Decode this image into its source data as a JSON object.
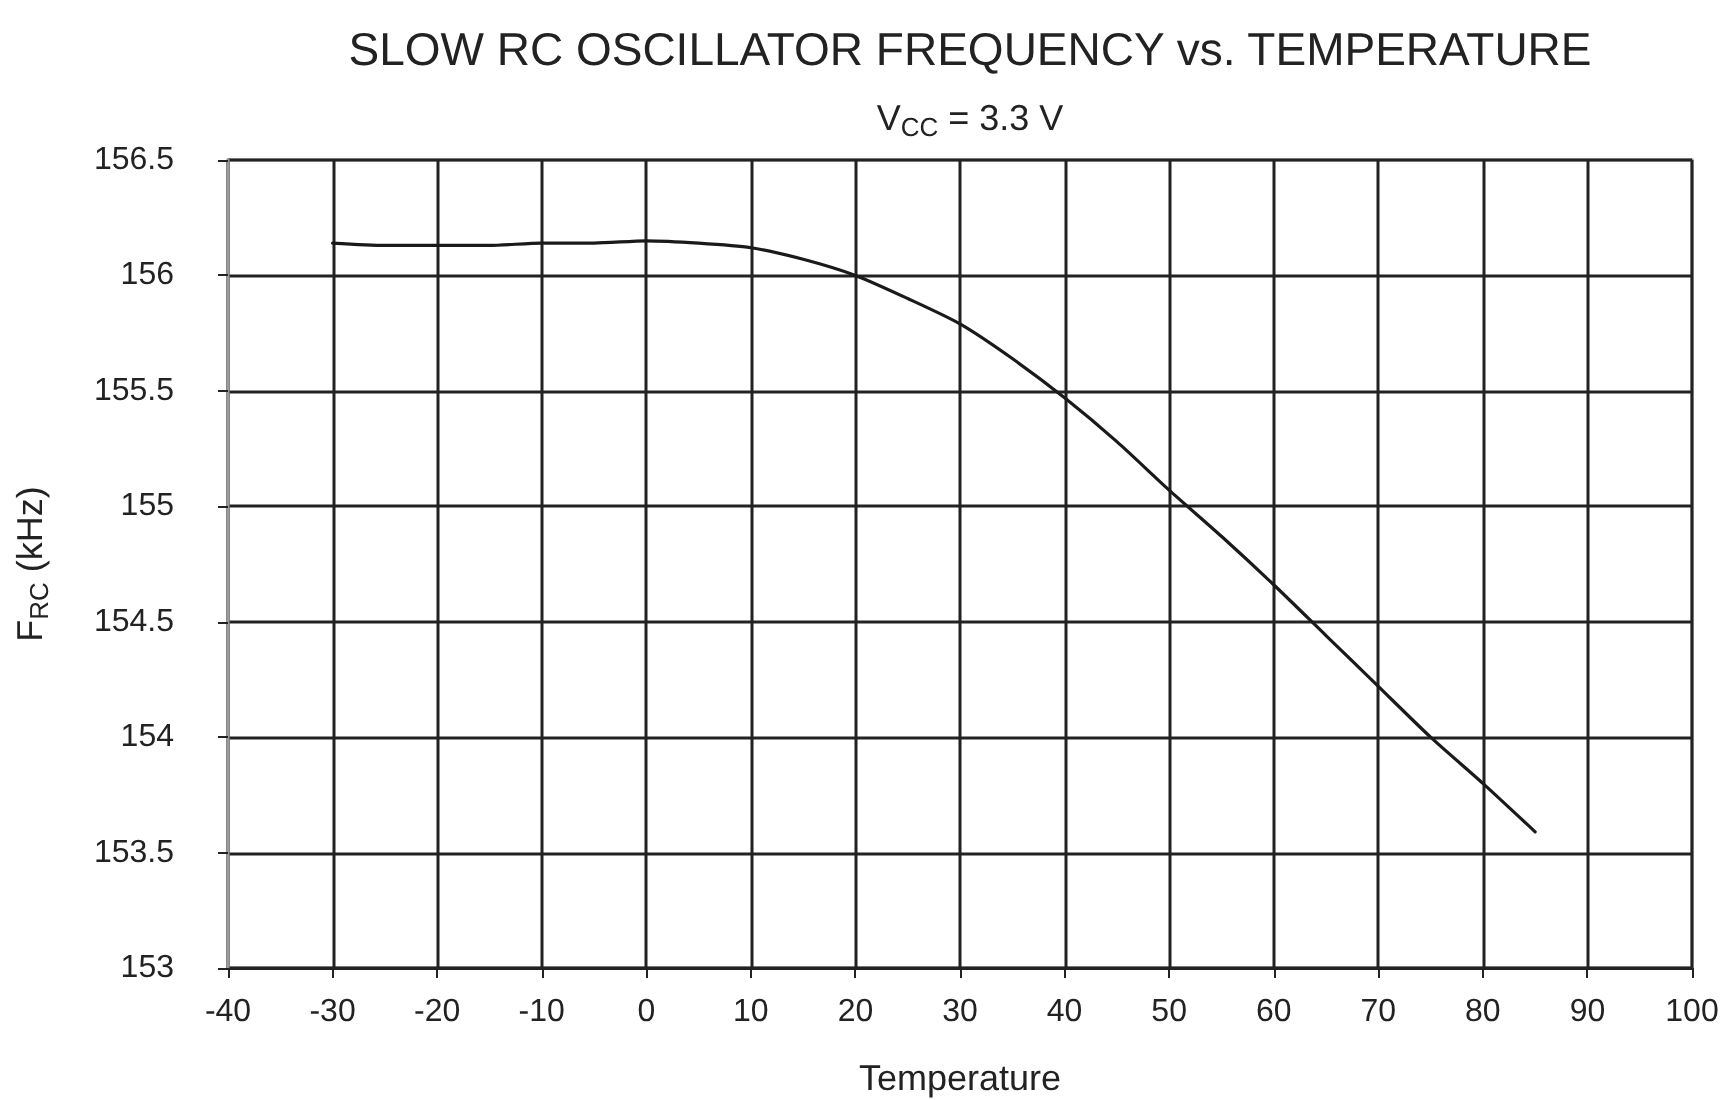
{
  "chart_data": {
    "type": "line",
    "title": "SLOW RC OSCILLATOR FREQUENCY vs. TEMPERATURE",
    "subtitle": "V$_{CC}$ = 3.3 V",
    "xlabel": "Temperature",
    "ylabel": "F$_{RC}$ (kHz)",
    "x": [
      -30,
      -25,
      -20,
      -15,
      -10,
      -5,
      0,
      5,
      10,
      15,
      20,
      25,
      30,
      35,
      40,
      45,
      50,
      55,
      60,
      65,
      70,
      75,
      80,
      85
    ],
    "series": [
      {
        "color": "#1a1a1a",
        "values": [
          156.14,
          156.13,
          156.13,
          156.13,
          156.14,
          156.14,
          156.15,
          156.14,
          156.12,
          156.07,
          156.0,
          155.9,
          155.79,
          155.64,
          155.47,
          155.28,
          155.07,
          154.87,
          154.66,
          154.44,
          154.22,
          154.0,
          153.8,
          153.59
        ]
      }
    ],
    "xlim": [
      -40,
      100
    ],
    "xticks": [
      -40,
      -30,
      -20,
      -10,
      0,
      10,
      20,
      30,
      40,
      50,
      60,
      70,
      80,
      90,
      100
    ],
    "ylim": [
      153,
      156.5
    ],
    "yticks": [
      153,
      153.5,
      154,
      154.5,
      155,
      155.5,
      156,
      156.5
    ],
    "grid": true,
    "marker": "none",
    "line_style": "solid"
  }
}
